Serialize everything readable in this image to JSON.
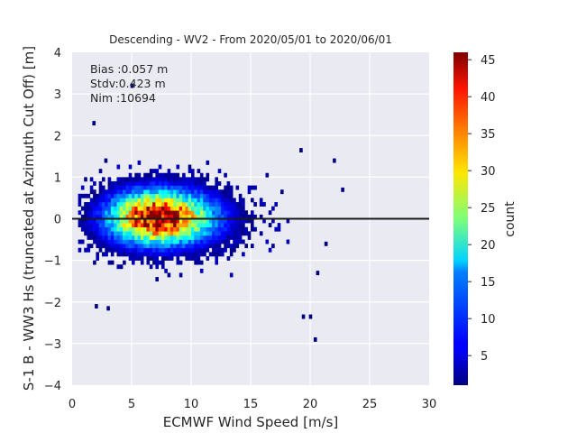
{
  "chart_data": {
    "type": "heatmap",
    "title": "Descending - WV2 - From 2020/05/01 to 2020/06/01",
    "xlabel": "ECMWF Wind Speed [m/s]",
    "ylabel": "S-1 B - WW3 Hs (truncated at Azimuth Cut Off) [m]",
    "xlim": [
      0,
      30
    ],
    "ylim": [
      -4,
      4
    ],
    "x_ticks": [
      "0",
      "5",
      "10",
      "15",
      "20",
      "25",
      "30"
    ],
    "y_ticks": [
      "4",
      "3",
      "2",
      "1",
      "0",
      "−1",
      "−2",
      "−3",
      "−4"
    ],
    "grid": true,
    "reference_line_y": 0,
    "annotations": [
      "Bias :0.057 m",
      "Stdv:0.423 m",
      "Nim :10694"
    ],
    "colorbar": {
      "label": "count",
      "range": [
        1,
        46
      ],
      "ticks": [
        "5",
        "10",
        "15",
        "20",
        "25",
        "30",
        "35",
        "40",
        "45"
      ],
      "colormap": "jet"
    },
    "density_model": {
      "x_center": 7.0,
      "y_center": 0.03,
      "peak_count": 46,
      "core_x_range": [
        2.5,
        13
      ],
      "core_y_range": [
        -0.6,
        0.7
      ]
    }
  },
  "colors": {
    "axes_background": "#eaeaf2",
    "grid": "#ffffff",
    "reference_line": "#1a1a1a",
    "text": "#262626"
  }
}
